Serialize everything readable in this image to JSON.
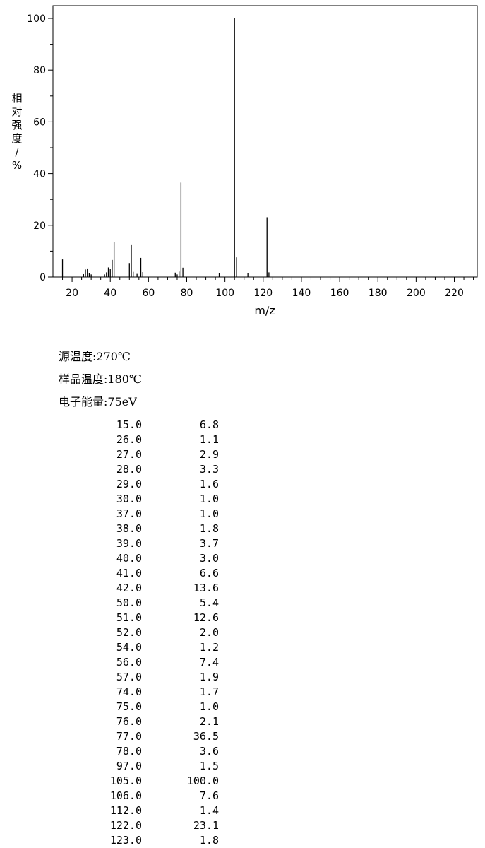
{
  "chart_data": {
    "type": "bar",
    "xlabel": "m/z",
    "ylabel": "相对强度/%",
    "xlim": [
      10,
      232
    ],
    "ylim": [
      0,
      105
    ],
    "x_ticks": [
      20,
      40,
      60,
      80,
      100,
      120,
      140,
      160,
      180,
      200,
      220
    ],
    "y_ticks": [
      0,
      20,
      40,
      60,
      80,
      100
    ],
    "grid": false,
    "peaks": [
      {
        "mz": 15.0,
        "intensity": 6.8
      },
      {
        "mz": 26.0,
        "intensity": 1.1
      },
      {
        "mz": 27.0,
        "intensity": 2.9
      },
      {
        "mz": 28.0,
        "intensity": 3.3
      },
      {
        "mz": 29.0,
        "intensity": 1.6
      },
      {
        "mz": 30.0,
        "intensity": 1.0
      },
      {
        "mz": 37.0,
        "intensity": 1.0
      },
      {
        "mz": 38.0,
        "intensity": 1.8
      },
      {
        "mz": 39.0,
        "intensity": 3.7
      },
      {
        "mz": 40.0,
        "intensity": 3.0
      },
      {
        "mz": 41.0,
        "intensity": 6.6
      },
      {
        "mz": 42.0,
        "intensity": 13.6
      },
      {
        "mz": 50.0,
        "intensity": 5.4
      },
      {
        "mz": 51.0,
        "intensity": 12.6
      },
      {
        "mz": 52.0,
        "intensity": 2.0
      },
      {
        "mz": 54.0,
        "intensity": 1.2
      },
      {
        "mz": 56.0,
        "intensity": 7.4
      },
      {
        "mz": 57.0,
        "intensity": 1.9
      },
      {
        "mz": 74.0,
        "intensity": 1.7
      },
      {
        "mz": 75.0,
        "intensity": 1.0
      },
      {
        "mz": 76.0,
        "intensity": 2.1
      },
      {
        "mz": 77.0,
        "intensity": 36.5
      },
      {
        "mz": 78.0,
        "intensity": 3.6
      },
      {
        "mz": 97.0,
        "intensity": 1.5
      },
      {
        "mz": 105.0,
        "intensity": 100.0
      },
      {
        "mz": 106.0,
        "intensity": 7.6
      },
      {
        "mz": 112.0,
        "intensity": 1.4
      },
      {
        "mz": 122.0,
        "intensity": 23.1
      },
      {
        "mz": 123.0,
        "intensity": 1.8
      }
    ]
  },
  "conditions": {
    "source_temp": "源温度:270℃",
    "sample_temp": "样品温度:180℃",
    "electron_energy": "电子能量:75eV"
  },
  "peak_table": [
    {
      "mz": "15.0",
      "intensity": "6.8"
    },
    {
      "mz": "26.0",
      "intensity": "1.1"
    },
    {
      "mz": "27.0",
      "intensity": "2.9"
    },
    {
      "mz": "28.0",
      "intensity": "3.3"
    },
    {
      "mz": "29.0",
      "intensity": "1.6"
    },
    {
      "mz": "30.0",
      "intensity": "1.0"
    },
    {
      "mz": "37.0",
      "intensity": "1.0"
    },
    {
      "mz": "38.0",
      "intensity": "1.8"
    },
    {
      "mz": "39.0",
      "intensity": "3.7"
    },
    {
      "mz": "40.0",
      "intensity": "3.0"
    },
    {
      "mz": "41.0",
      "intensity": "6.6"
    },
    {
      "mz": "42.0",
      "intensity": "13.6"
    },
    {
      "mz": "50.0",
      "intensity": "5.4"
    },
    {
      "mz": "51.0",
      "intensity": "12.6"
    },
    {
      "mz": "52.0",
      "intensity": "2.0"
    },
    {
      "mz": "54.0",
      "intensity": "1.2"
    },
    {
      "mz": "56.0",
      "intensity": "7.4"
    },
    {
      "mz": "57.0",
      "intensity": "1.9"
    },
    {
      "mz": "74.0",
      "intensity": "1.7"
    },
    {
      "mz": "75.0",
      "intensity": "1.0"
    },
    {
      "mz": "76.0",
      "intensity": "2.1"
    },
    {
      "mz": "77.0",
      "intensity": "36.5"
    },
    {
      "mz": "78.0",
      "intensity": "3.6"
    },
    {
      "mz": "97.0",
      "intensity": "1.5"
    },
    {
      "mz": "105.0",
      "intensity": "100.0"
    },
    {
      "mz": "106.0",
      "intensity": "7.6"
    },
    {
      "mz": "112.0",
      "intensity": "1.4"
    },
    {
      "mz": "122.0",
      "intensity": "23.1"
    },
    {
      "mz": "123.0",
      "intensity": "1.8"
    }
  ]
}
